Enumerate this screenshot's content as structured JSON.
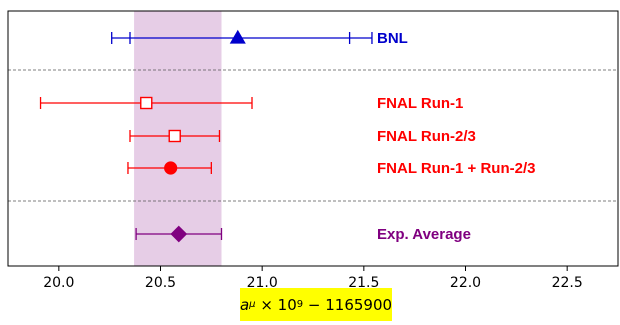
{
  "chart_data": {
    "type": "scatter",
    "orientation": "horizontal-errorbars",
    "xlim": [
      19.75,
      22.75
    ],
    "xticks": [
      20.0,
      20.5,
      21.0,
      21.5,
      22.0,
      22.5
    ],
    "xtick_labels": [
      "20.0",
      "20.5",
      "21.0",
      "21.5",
      "22.0",
      "22.5"
    ],
    "xlabel": {
      "symbol": "a",
      "subscript": "μ",
      "times": "× 10",
      "exponent": "9",
      "offset": "− 1165900"
    },
    "xlabel_highlight_color": "#ffff00",
    "band": {
      "x_min": 20.37,
      "x_max": 20.8,
      "color": "#e6cde6"
    },
    "separators_after": [
      0,
      3
    ],
    "series": [
      {
        "name": "BNL",
        "x": 20.88,
        "low": 20.26,
        "high": 21.54,
        "inner_low": 20.35,
        "inner_high": 21.43,
        "marker": "triangle",
        "filled": true,
        "color": "#0000cc"
      },
      {
        "name": "FNAL Run-1",
        "x": 20.43,
        "low": 19.91,
        "high": 20.95,
        "inner_low": null,
        "inner_high": null,
        "marker": "square",
        "filled": false,
        "color": "#ff0000"
      },
      {
        "name": "FNAL Run-2/3",
        "x": 20.57,
        "low": 20.35,
        "high": 20.79,
        "inner_low": null,
        "inner_high": null,
        "marker": "square",
        "filled": false,
        "color": "#ff0000"
      },
      {
        "name": "FNAL Run-1 + Run-2/3",
        "x": 20.55,
        "low": 20.34,
        "high": 20.75,
        "inner_low": null,
        "inner_high": null,
        "marker": "circle",
        "filled": true,
        "color": "#ff0000"
      },
      {
        "name": "Exp. Average",
        "x": 20.59,
        "low": 20.38,
        "high": 20.8,
        "inner_low": null,
        "inner_high": null,
        "marker": "diamond",
        "filled": true,
        "color": "#800080"
      }
    ],
    "grid": false,
    "legend": "none"
  }
}
